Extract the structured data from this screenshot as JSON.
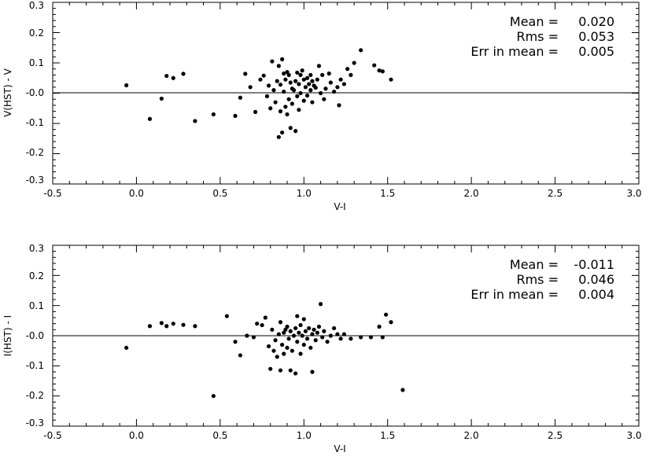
{
  "chart_data": [
    {
      "type": "scatter",
      "title": "",
      "xlabel": "V-I",
      "ylabel": "V(HST) - V",
      "xlim": [
        -0.5,
        3.0
      ],
      "ylim": [
        -0.3,
        0.3
      ],
      "xticks": [
        "-0.5",
        "0.0",
        "0.5",
        "1.0",
        "1.5",
        "2.0",
        "2.5",
        "3.0"
      ],
      "yticks": [
        "0.3",
        "0.2",
        "0.1",
        "-0.0",
        "-0.1",
        "-0.2",
        "-0.3"
      ],
      "reference_line_y": 0,
      "grid": false,
      "stats": [
        {
          "label": "Mean =",
          "value": "0.020"
        },
        {
          "label": "Rms =",
          "value": "0.053"
        },
        {
          "label": "Err in mean =",
          "value": "0.005"
        }
      ],
      "points": [
        {
          "x": -0.06,
          "y": 0.026
        },
        {
          "x": 0.08,
          "y": -0.085
        },
        {
          "x": 0.15,
          "y": -0.018
        },
        {
          "x": 0.18,
          "y": 0.057
        },
        {
          "x": 0.22,
          "y": 0.05
        },
        {
          "x": 0.28,
          "y": 0.064
        },
        {
          "x": 0.35,
          "y": -0.092
        },
        {
          "x": 0.46,
          "y": -0.07
        },
        {
          "x": 0.59,
          "y": -0.075
        },
        {
          "x": 0.62,
          "y": -0.015
        },
        {
          "x": 0.65,
          "y": 0.064
        },
        {
          "x": 0.68,
          "y": 0.02
        },
        {
          "x": 0.71,
          "y": -0.062
        },
        {
          "x": 0.74,
          "y": 0.045
        },
        {
          "x": 0.76,
          "y": 0.058
        },
        {
          "x": 0.78,
          "y": -0.01
        },
        {
          "x": 0.79,
          "y": 0.025
        },
        {
          "x": 0.8,
          "y": -0.05
        },
        {
          "x": 0.81,
          "y": 0.105
        },
        {
          "x": 0.82,
          "y": 0.01
        },
        {
          "x": 0.83,
          "y": -0.03
        },
        {
          "x": 0.84,
          "y": 0.04
        },
        {
          "x": 0.85,
          "y": -0.145
        },
        {
          "x": 0.85,
          "y": 0.09
        },
        {
          "x": 0.86,
          "y": -0.06
        },
        {
          "x": 0.86,
          "y": 0.028
        },
        {
          "x": 0.87,
          "y": 0.112
        },
        {
          "x": 0.87,
          "y": -0.13
        },
        {
          "x": 0.88,
          "y": 0.065
        },
        {
          "x": 0.88,
          "y": 0.005
        },
        {
          "x": 0.89,
          "y": -0.045
        },
        {
          "x": 0.89,
          "y": 0.045
        },
        {
          "x": 0.9,
          "y": 0.07
        },
        {
          "x": 0.9,
          "y": -0.07
        },
        {
          "x": 0.91,
          "y": -0.02
        },
        {
          "x": 0.91,
          "y": 0.06
        },
        {
          "x": 0.92,
          "y": -0.115
        },
        {
          "x": 0.92,
          "y": 0.035
        },
        {
          "x": 0.93,
          "y": 0.015
        },
        {
          "x": 0.93,
          "y": -0.035
        },
        {
          "x": 0.94,
          "y": 0.01
        },
        {
          "x": 0.95,
          "y": -0.125
        },
        {
          "x": 0.95,
          "y": 0.04
        },
        {
          "x": 0.96,
          "y": 0.068
        },
        {
          "x": 0.96,
          "y": -0.01
        },
        {
          "x": 0.97,
          "y": 0.03
        },
        {
          "x": 0.97,
          "y": -0.055
        },
        {
          "x": 0.98,
          "y": 0.06
        },
        {
          "x": 0.98,
          "y": 0.0
        },
        {
          "x": 0.99,
          "y": 0.075
        },
        {
          "x": 1.0,
          "y": 0.045
        },
        {
          "x": 1.0,
          "y": -0.025
        },
        {
          "x": 1.01,
          "y": 0.02
        },
        {
          "x": 1.02,
          "y": 0.05
        },
        {
          "x": 1.02,
          "y": -0.008
        },
        {
          "x": 1.03,
          "y": 0.03
        },
        {
          "x": 1.04,
          "y": 0.06
        },
        {
          "x": 1.04,
          "y": 0.01
        },
        {
          "x": 1.05,
          "y": -0.03
        },
        {
          "x": 1.05,
          "y": 0.04
        },
        {
          "x": 1.06,
          "y": 0.025
        },
        {
          "x": 1.07,
          "y": 0.018
        },
        {
          "x": 1.08,
          "y": 0.045
        },
        {
          "x": 1.09,
          "y": 0.09
        },
        {
          "x": 1.1,
          "y": 0.0
        },
        {
          "x": 1.11,
          "y": 0.06
        },
        {
          "x": 1.12,
          "y": -0.02
        },
        {
          "x": 1.13,
          "y": 0.015
        },
        {
          "x": 1.15,
          "y": 0.065
        },
        {
          "x": 1.16,
          "y": 0.035
        },
        {
          "x": 1.18,
          "y": 0.005
        },
        {
          "x": 1.2,
          "y": 0.02
        },
        {
          "x": 1.21,
          "y": -0.04
        },
        {
          "x": 1.22,
          "y": 0.045
        },
        {
          "x": 1.24,
          "y": 0.03
        },
        {
          "x": 1.26,
          "y": 0.08
        },
        {
          "x": 1.28,
          "y": 0.06
        },
        {
          "x": 1.3,
          "y": 0.1
        },
        {
          "x": 1.34,
          "y": 0.142
        },
        {
          "x": 1.42,
          "y": 0.092
        },
        {
          "x": 1.45,
          "y": 0.075
        },
        {
          "x": 1.47,
          "y": 0.072
        },
        {
          "x": 1.52,
          "y": 0.045
        }
      ]
    },
    {
      "type": "scatter",
      "title": "",
      "xlabel": "V-I",
      "ylabel": "I(HST) - I",
      "xlim": [
        -0.5,
        3.0
      ],
      "ylim": [
        -0.3,
        0.3
      ],
      "xticks": [
        "-0.5",
        "0.0",
        "0.5",
        "1.0",
        "1.5",
        "2.0",
        "2.5",
        "3.0"
      ],
      "yticks": [
        "0.3",
        "0.2",
        "0.1",
        "-0.0",
        "-0.1",
        "-0.2",
        "-0.3"
      ],
      "reference_line_y": 0,
      "grid": false,
      "stats": [
        {
          "label": "Mean =",
          "value": "-0.011"
        },
        {
          "label": "Rms =",
          "value": "0.046"
        },
        {
          "label": "Err in mean =",
          "value": "0.004"
        }
      ],
      "points": [
        {
          "x": -0.06,
          "y": -0.04
        },
        {
          "x": 0.08,
          "y": 0.032
        },
        {
          "x": 0.15,
          "y": 0.042
        },
        {
          "x": 0.18,
          "y": 0.032
        },
        {
          "x": 0.22,
          "y": 0.04
        },
        {
          "x": 0.28,
          "y": 0.036
        },
        {
          "x": 0.35,
          "y": 0.032
        },
        {
          "x": 0.46,
          "y": -0.2
        },
        {
          "x": 0.54,
          "y": 0.065
        },
        {
          "x": 0.59,
          "y": -0.02
        },
        {
          "x": 0.62,
          "y": -0.065
        },
        {
          "x": 0.66,
          "y": 0.0
        },
        {
          "x": 0.7,
          "y": -0.005
        },
        {
          "x": 0.72,
          "y": 0.04
        },
        {
          "x": 0.75,
          "y": 0.035
        },
        {
          "x": 0.77,
          "y": 0.06
        },
        {
          "x": 0.79,
          "y": -0.035
        },
        {
          "x": 0.8,
          "y": -0.11
        },
        {
          "x": 0.81,
          "y": 0.02
        },
        {
          "x": 0.82,
          "y": -0.05
        },
        {
          "x": 0.83,
          "y": -0.015
        },
        {
          "x": 0.84,
          "y": -0.07
        },
        {
          "x": 0.85,
          "y": 0.005
        },
        {
          "x": 0.86,
          "y": -0.115
        },
        {
          "x": 0.86,
          "y": 0.045
        },
        {
          "x": 0.87,
          "y": -0.03
        },
        {
          "x": 0.88,
          "y": 0.01
        },
        {
          "x": 0.88,
          "y": -0.06
        },
        {
          "x": 0.89,
          "y": 0.02
        },
        {
          "x": 0.9,
          "y": -0.04
        },
        {
          "x": 0.9,
          "y": 0.03
        },
        {
          "x": 0.91,
          "y": -0.01
        },
        {
          "x": 0.92,
          "y": -0.115
        },
        {
          "x": 0.92,
          "y": 0.015
        },
        {
          "x": 0.93,
          "y": -0.05
        },
        {
          "x": 0.94,
          "y": 0.0
        },
        {
          "x": 0.95,
          "y": -0.125
        },
        {
          "x": 0.95,
          "y": 0.025
        },
        {
          "x": 0.96,
          "y": 0.065
        },
        {
          "x": 0.96,
          "y": -0.02
        },
        {
          "x": 0.97,
          "y": 0.01
        },
        {
          "x": 0.98,
          "y": -0.06
        },
        {
          "x": 0.98,
          "y": 0.035
        },
        {
          "x": 0.99,
          "y": 0.0
        },
        {
          "x": 1.0,
          "y": 0.055
        },
        {
          "x": 1.0,
          "y": -0.03
        },
        {
          "x": 1.01,
          "y": 0.015
        },
        {
          "x": 1.02,
          "y": -0.01
        },
        {
          "x": 1.03,
          "y": 0.025
        },
        {
          "x": 1.04,
          "y": -0.04
        },
        {
          "x": 1.05,
          "y": -0.12
        },
        {
          "x": 1.05,
          "y": 0.005
        },
        {
          "x": 1.06,
          "y": 0.02
        },
        {
          "x": 1.07,
          "y": -0.015
        },
        {
          "x": 1.08,
          "y": 0.01
        },
        {
          "x": 1.09,
          "y": 0.03
        },
        {
          "x": 1.1,
          "y": 0.105
        },
        {
          "x": 1.11,
          "y": -0.005
        },
        {
          "x": 1.12,
          "y": 0.015
        },
        {
          "x": 1.14,
          "y": -0.02
        },
        {
          "x": 1.16,
          "y": 0.0
        },
        {
          "x": 1.18,
          "y": 0.025
        },
        {
          "x": 1.2,
          "y": 0.005
        },
        {
          "x": 1.22,
          "y": -0.01
        },
        {
          "x": 1.24,
          "y": 0.005
        },
        {
          "x": 1.28,
          "y": -0.01
        },
        {
          "x": 1.34,
          "y": -0.005
        },
        {
          "x": 1.4,
          "y": -0.005
        },
        {
          "x": 1.45,
          "y": 0.03
        },
        {
          "x": 1.47,
          "y": -0.005
        },
        {
          "x": 1.49,
          "y": 0.07
        },
        {
          "x": 1.52,
          "y": 0.045
        },
        {
          "x": 1.59,
          "y": -0.18
        }
      ]
    }
  ]
}
